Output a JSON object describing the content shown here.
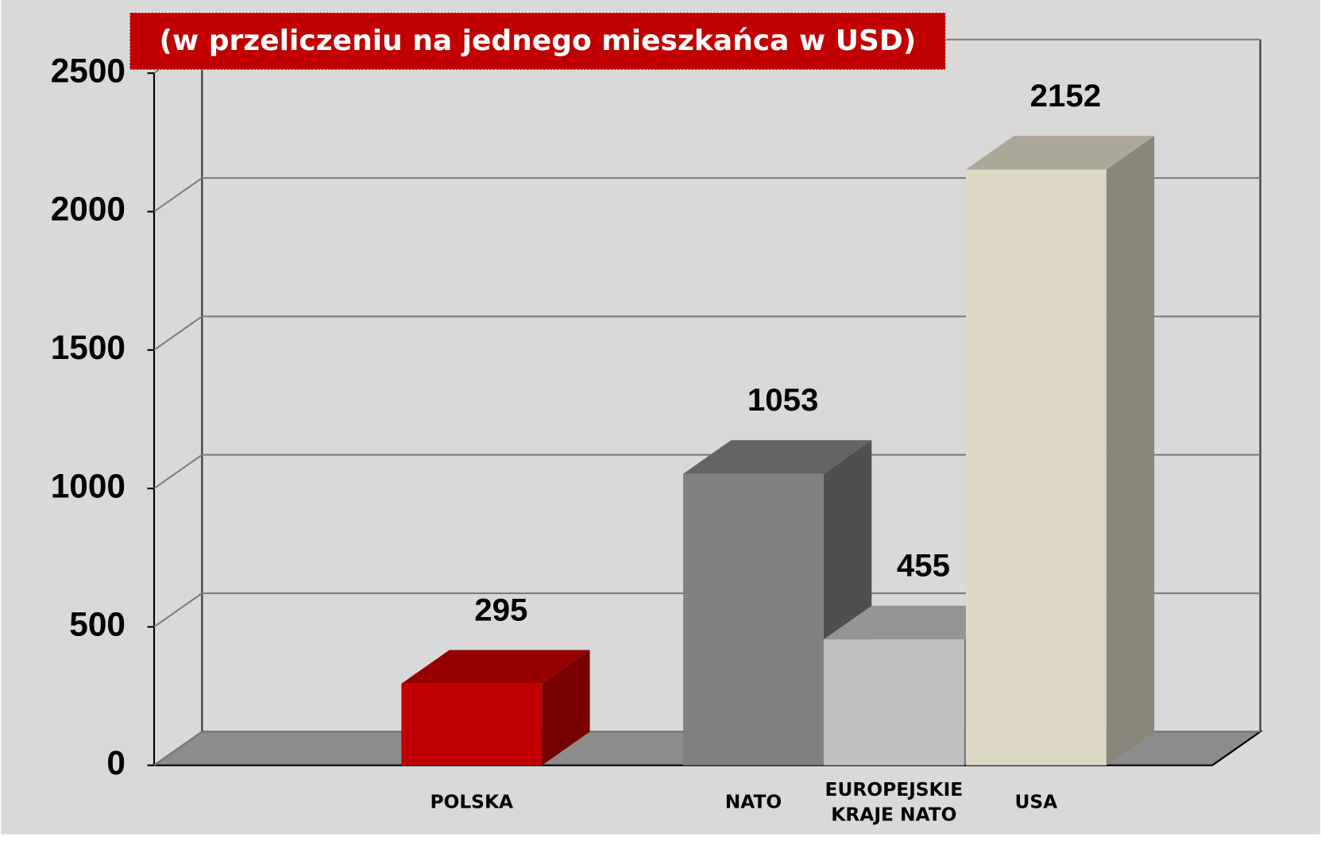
{
  "chart_data": {
    "type": "bar3d",
    "title": "(w przeliczeniu na jednego mieszkańca w USD)",
    "categories": [
      "POLSKA",
      "NATO",
      "EUROPEJSKIE KRAJE NATO",
      "USA"
    ],
    "values": [
      295,
      1053,
      455,
      2152
    ],
    "colors": [
      "#c00000",
      "#808080",
      "#bfbfbf",
      "#ddd8c4"
    ],
    "ylim": [
      0,
      2500
    ],
    "yticks": [
      0,
      500,
      1000,
      1500,
      2000,
      2500
    ],
    "grid": true
  }
}
